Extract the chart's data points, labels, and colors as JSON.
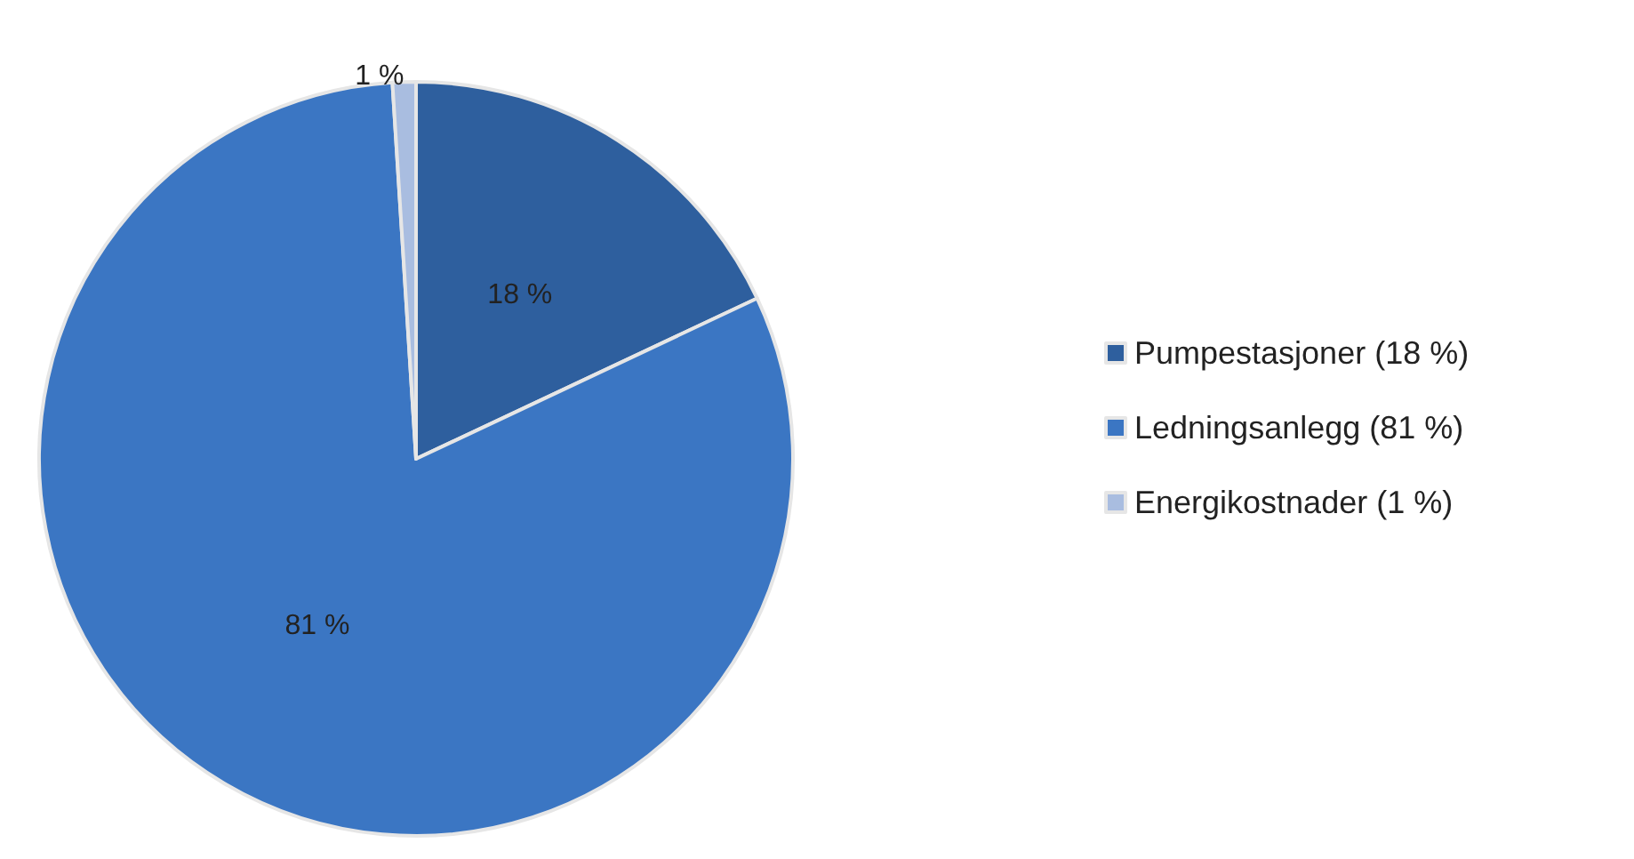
{
  "chart_data": {
    "type": "pie",
    "categories": [
      "Pumpestasjoner (18 %)",
      "Ledningsanlegg (81 %)",
      "Energikostnader (1 %)"
    ],
    "values": [
      18,
      81,
      1
    ],
    "colors": [
      "#2e5f9e",
      "#3b76c3",
      "#a9bde0"
    ],
    "value_labels": [
      "18 %",
      "81 %",
      "1 %"
    ],
    "legend": "right"
  }
}
